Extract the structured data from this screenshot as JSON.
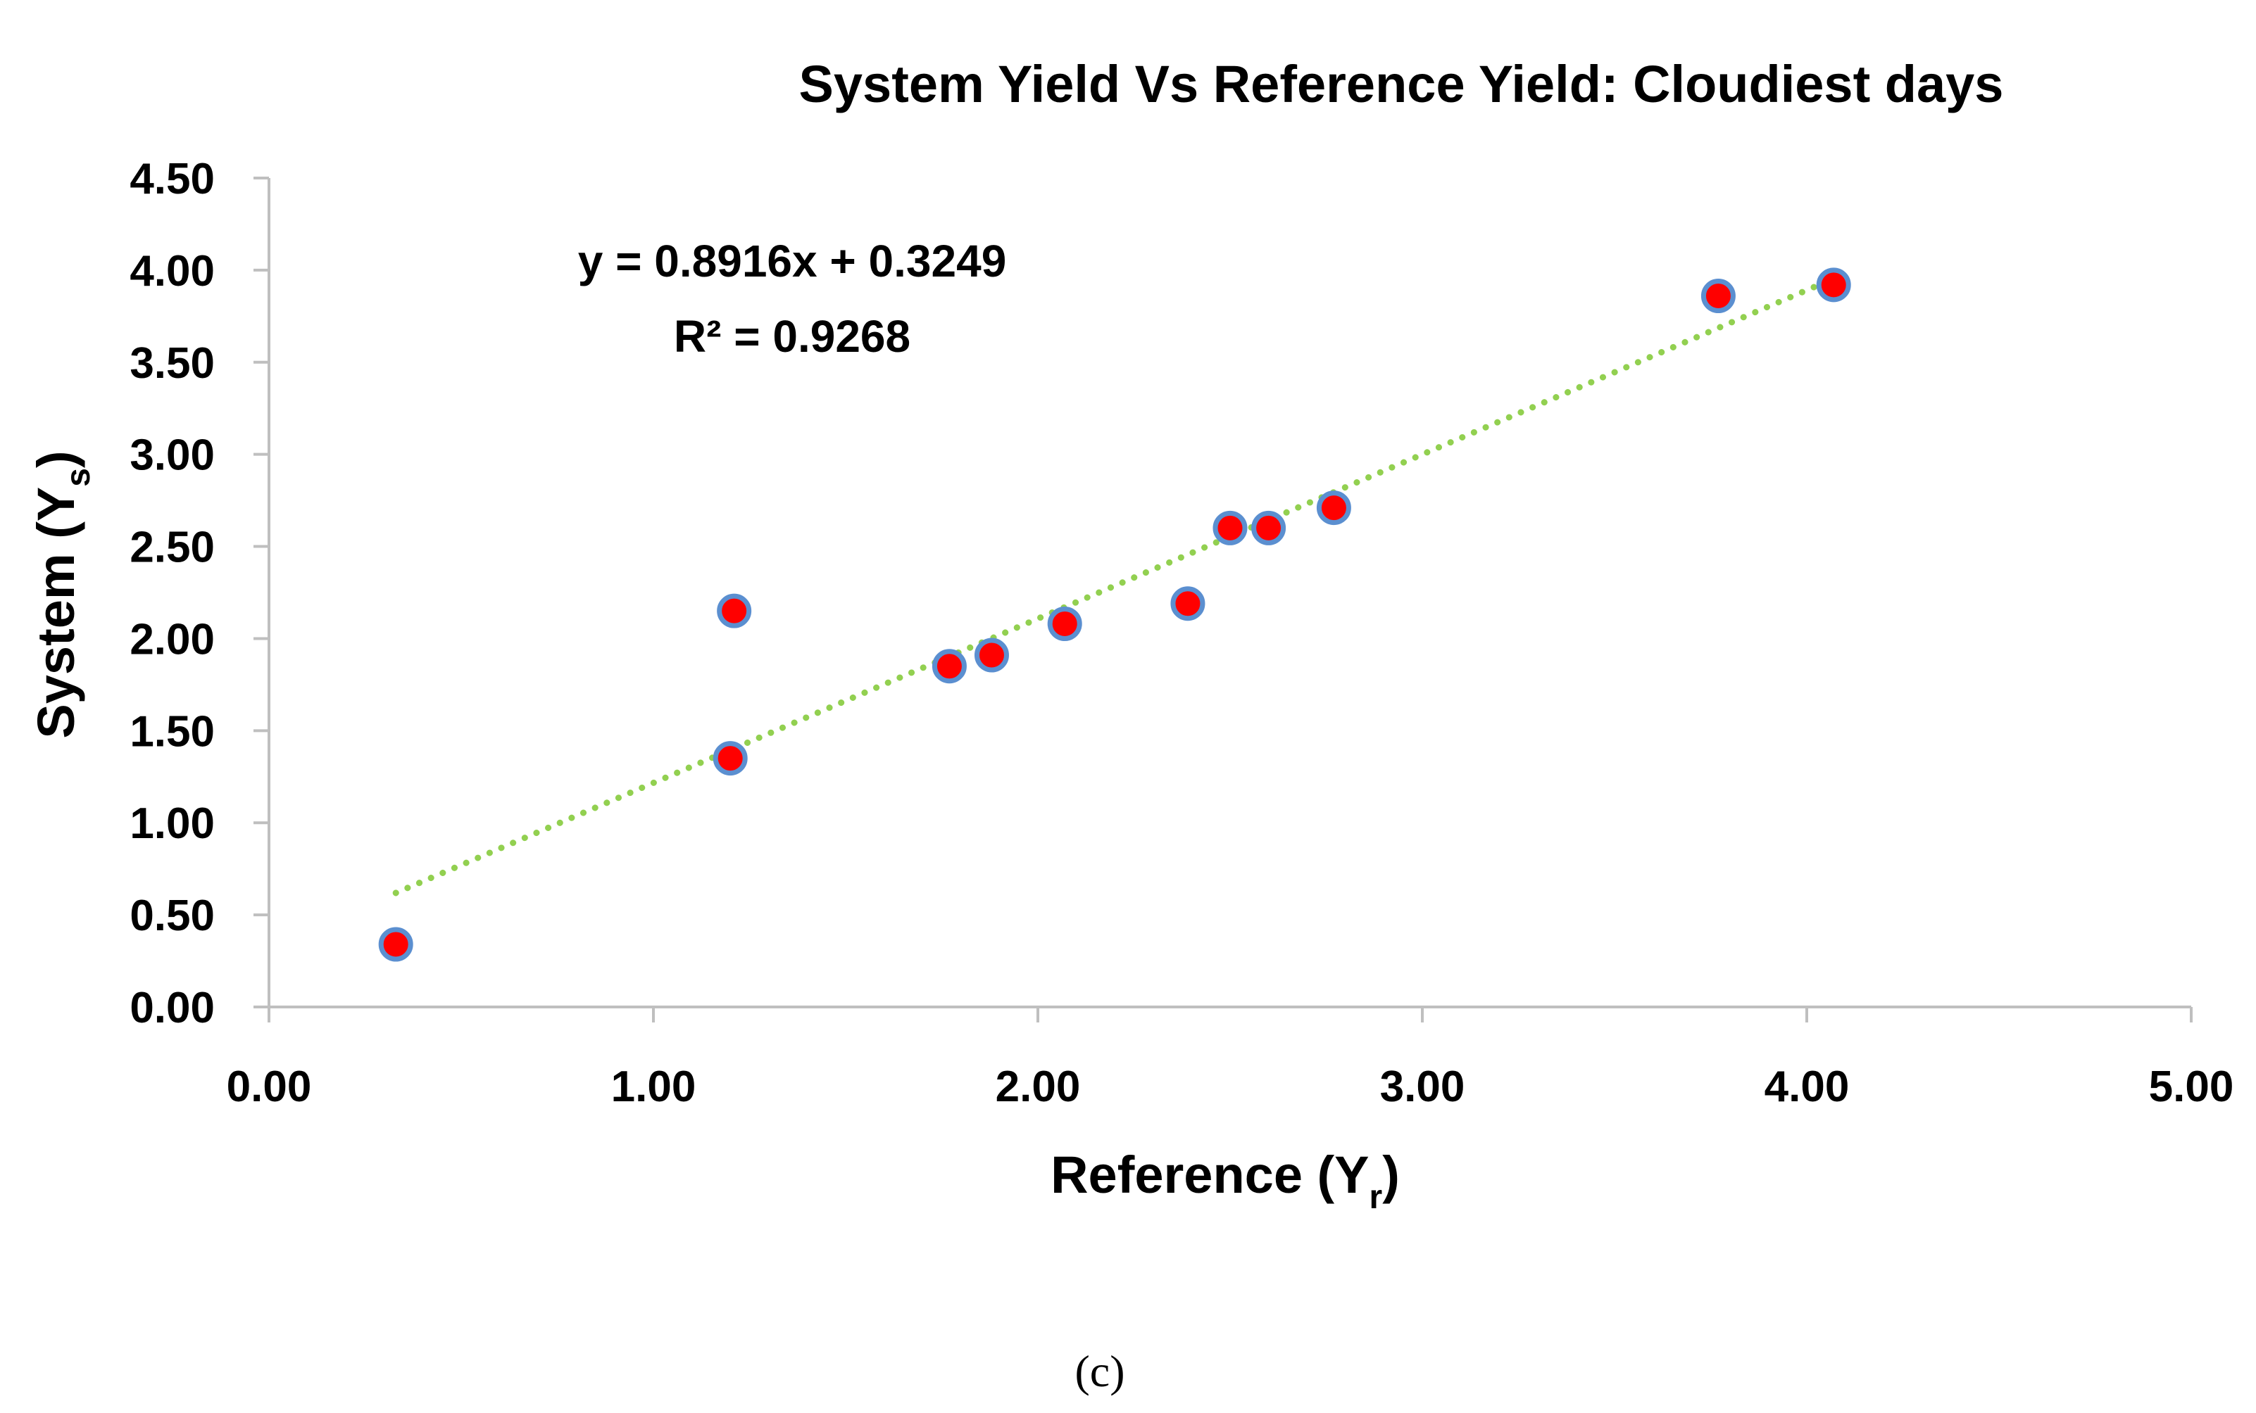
{
  "chart_data": {
    "type": "scatter",
    "title": "System Yield Vs Reference Yield: Cloudiest days",
    "xlabel": {
      "main": "Reference (Y",
      "sub": "r",
      "close": ")"
    },
    "ylabel": {
      "main": "System (Y",
      "sub": "s",
      "close": ")"
    },
    "xlim": [
      0,
      5
    ],
    "ylim": [
      0,
      4.5
    ],
    "xticks": [
      "0.00",
      "1.00",
      "2.00",
      "3.00",
      "4.00",
      "5.00"
    ],
    "yticks": [
      "0.00",
      "0.50",
      "1.00",
      "1.50",
      "2.00",
      "2.50",
      "3.00",
      "3.50",
      "4.00",
      "4.50"
    ],
    "grid": false,
    "legend": "none",
    "series": [
      {
        "points": [
          {
            "x": 0.33,
            "y": 0.34
          },
          {
            "x": 1.2,
            "y": 1.35
          },
          {
            "x": 1.21,
            "y": 2.15
          },
          {
            "x": 1.77,
            "y": 1.85
          },
          {
            "x": 1.88,
            "y": 1.91
          },
          {
            "x": 2.07,
            "y": 2.08
          },
          {
            "x": 2.39,
            "y": 2.19
          },
          {
            "x": 2.5,
            "y": 2.6
          },
          {
            "x": 2.6,
            "y": 2.6
          },
          {
            "x": 2.77,
            "y": 2.71
          },
          {
            "x": 3.77,
            "y": 3.86
          },
          {
            "x": 4.07,
            "y": 3.92
          }
        ],
        "marker_fill": "#ff0000",
        "marker_edge": "#5b8fd0"
      }
    ],
    "trendline": {
      "type": "linear",
      "slope": 0.8916,
      "intercept": 0.3249,
      "x_range": [
        0.33,
        4.07
      ],
      "color": "#92d050",
      "style": "dotted",
      "equation": "y = 0.8916x + 0.3249",
      "r_squared": "R² = 0.9268"
    },
    "axis_color": "#bfbfbf"
  },
  "panel_label": "(c)"
}
